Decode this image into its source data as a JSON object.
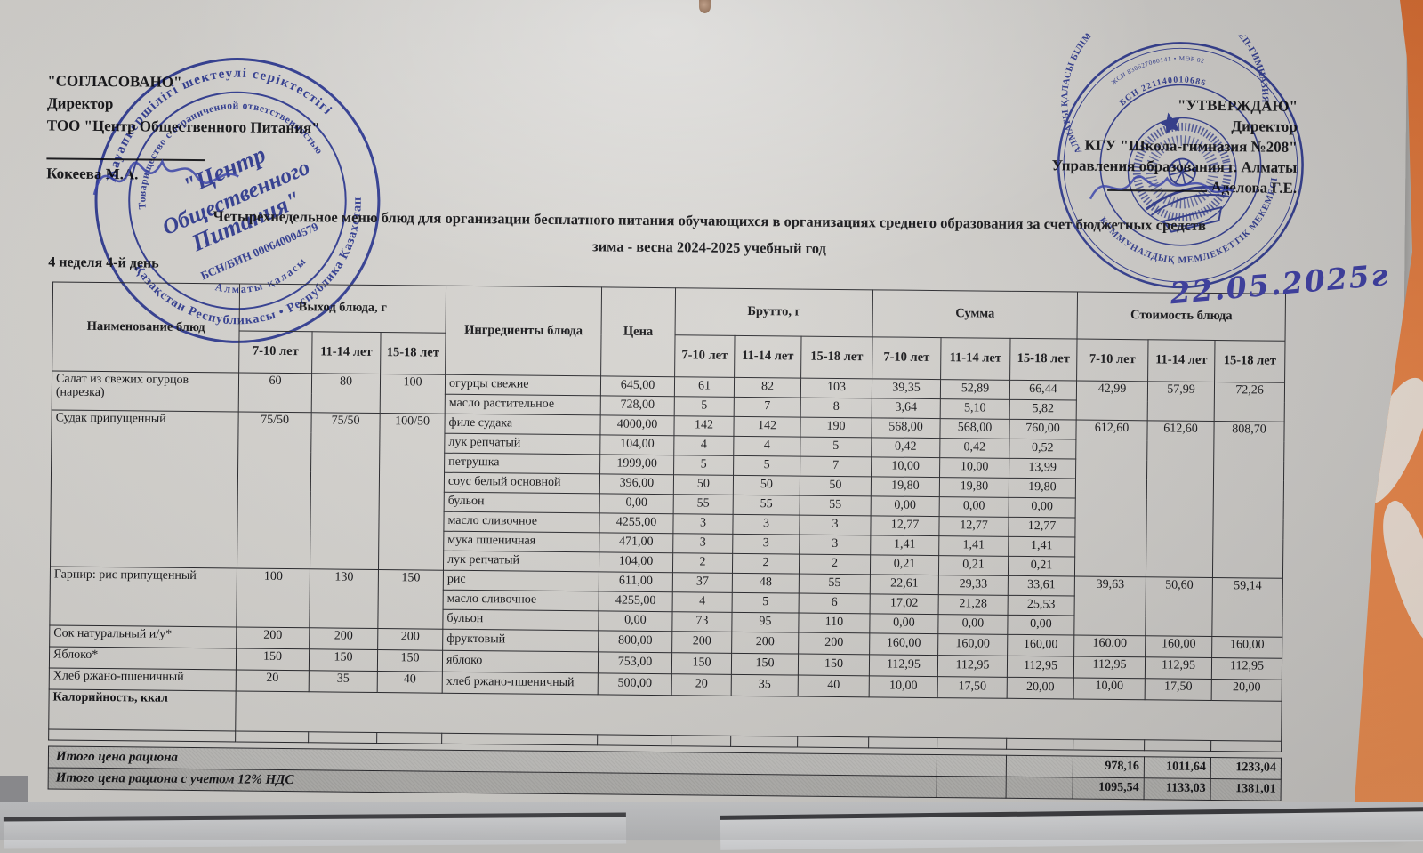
{
  "approvals": {
    "left": {
      "lines": [
        "\"СОГЛАСОВАНО\"",
        "Директор",
        "ТОО \"Центр Общественного Питания\""
      ],
      "name": "Кокеева М.А."
    },
    "right": {
      "lines": [
        "\"УТВЕРЖДАЮ\"",
        "Директор",
        "КГУ \"Школа-гимназия №208\"",
        "Управления образования г. Алматы"
      ],
      "name": "Аделова Г.Е."
    }
  },
  "title": {
    "line1": "Четырехнедельное меню блюд для организации бесплатного питания обучающихся в организациях среднего образования за счет бюджетных средств",
    "line2": "зима - весна 2024-2025 учебный год"
  },
  "week_label": "4 неделя 4-й день",
  "handwritten_date": "22.05.2025г",
  "stamps": {
    "left": {
      "ring_top": "Жауапкершілігі шектеулі серіктестігі",
      "ring_bottom": "Қазақстан Республикасы • Республика Казахстан",
      "ring_inner_top": "Товарищество с ограниченной ответственностью",
      "ring_inner_bottom": "Алматы қаласы",
      "center1": "\"Центр",
      "center2": "Общественного",
      "center3": "Питания\"",
      "bin": "БСН/БИН 000640004579"
    },
    "right": {
      "tiny_top": "ЖСН 830627000141 • МӨР 02",
      "ring_top": "АЛМАТЫ ҚАЛАСЫ БІЛІМ БАСҚАРМАСЫНЫҢ \"№ 208 МЕКТЕП-ГИМНАЗИЯ\"",
      "ring_bottom": "КОММУНАЛДЫҚ МЕМЛЕКЕТТІК МЕКЕМЕСІ",
      "bin": "БСН 221140010686"
    }
  },
  "table": {
    "col_headers": {
      "name": "Наименование блюд",
      "vykhod": "Выход блюда, г",
      "ingredients": "Ингредиенты блюда",
      "price": "Цена",
      "brutto": "Брутто, г",
      "summa": "Сумма",
      "cost": "Стоимость блюда"
    },
    "age_groups": [
      "7-10 лет",
      "11-14 лет",
      "15-18 лет"
    ],
    "groups": [
      {
        "name": "Салат из свежих огурцов (нарезка)",
        "out": [
          "60",
          "80",
          "100"
        ],
        "cost": [
          "42,99",
          "57,99",
          "72,26"
        ],
        "rows": [
          {
            "ing": "огурцы свежие",
            "price": "645,00",
            "brutto": [
              "61",
              "82",
              "103"
            ],
            "summa": [
              "39,35",
              "52,89",
              "66,44"
            ]
          },
          {
            "ing": "масло растительное",
            "price": "728,00",
            "brutto": [
              "5",
              "7",
              "8"
            ],
            "summa": [
              "3,64",
              "5,10",
              "5,82"
            ]
          }
        ]
      },
      {
        "name": "Судак припущенный",
        "out": [
          "75/50",
          "75/50",
          "100/50"
        ],
        "cost": [
          "612,60",
          "612,60",
          "808,70"
        ],
        "rows": [
          {
            "ing": "филе судака",
            "price": "4000,00",
            "brutto": [
              "142",
              "142",
              "190"
            ],
            "summa": [
              "568,00",
              "568,00",
              "760,00"
            ]
          },
          {
            "ing": "лук репчатый",
            "price": "104,00",
            "brutto": [
              "4",
              "4",
              "5"
            ],
            "summa": [
              "0,42",
              "0,42",
              "0,52"
            ]
          },
          {
            "ing": "петрушка",
            "price": "1999,00",
            "brutto": [
              "5",
              "5",
              "7"
            ],
            "summa": [
              "10,00",
              "10,00",
              "13,99"
            ]
          },
          {
            "ing": "соус белый основной",
            "price": "396,00",
            "brutto": [
              "50",
              "50",
              "50"
            ],
            "summa": [
              "19,80",
              "19,80",
              "19,80"
            ]
          },
          {
            "ing": "бульон",
            "price": "0,00",
            "brutto": [
              "55",
              "55",
              "55"
            ],
            "summa": [
              "0,00",
              "0,00",
              "0,00"
            ]
          },
          {
            "ing": "масло сливочное",
            "price": "4255,00",
            "brutto": [
              "3",
              "3",
              "3"
            ],
            "summa": [
              "12,77",
              "12,77",
              "12,77"
            ]
          },
          {
            "ing": "мука пшеничная",
            "price": "471,00",
            "brutto": [
              "3",
              "3",
              "3"
            ],
            "summa": [
              "1,41",
              "1,41",
              "1,41"
            ]
          },
          {
            "ing": "лук репчатый",
            "price": "104,00",
            "brutto": [
              "2",
              "2",
              "2"
            ],
            "summa": [
              "0,21",
              "0,21",
              "0,21"
            ]
          }
        ]
      },
      {
        "name": "Гарнир: рис припущенный",
        "out": [
          "100",
          "130",
          "150"
        ],
        "cost": [
          "39,63",
          "50,60",
          "59,14"
        ],
        "rows": [
          {
            "ing": "рис",
            "price": "611,00",
            "brutto": [
              "37",
              "48",
              "55"
            ],
            "summa": [
              "22,61",
              "29,33",
              "33,61"
            ]
          },
          {
            "ing": "масло сливочное",
            "price": "4255,00",
            "brutto": [
              "4",
              "5",
              "6"
            ],
            "summa": [
              "17,02",
              "21,28",
              "25,53"
            ]
          },
          {
            "ing": "бульон",
            "price": "0,00",
            "brutto": [
              "73",
              "95",
              "110"
            ],
            "summa": [
              "0,00",
              "0,00",
              "0,00"
            ]
          }
        ]
      },
      {
        "name": "Сок натуральный и/у*",
        "out": [
          "200",
          "200",
          "200"
        ],
        "cost": [
          "160,00",
          "160,00",
          "160,00"
        ],
        "rows": [
          {
            "ing": "фруктовый",
            "price": "800,00",
            "brutto": [
              "200",
              "200",
              "200"
            ],
            "summa": [
              "160,00",
              "160,00",
              "160,00"
            ]
          }
        ]
      },
      {
        "name": "Яблоко*",
        "out": [
          "150",
          "150",
          "150"
        ],
        "cost": [
          "112,95",
          "112,95",
          "112,95"
        ],
        "rows": [
          {
            "ing": "яблоко",
            "price": "753,00",
            "brutto": [
              "150",
              "150",
              "150"
            ],
            "summa": [
              "112,95",
              "112,95",
              "112,95"
            ]
          }
        ]
      },
      {
        "name": "Хлеб ржано-пшеничный",
        "out": [
          "20",
          "35",
          "40"
        ],
        "cost": [
          "10,00",
          "17,50",
          "20,00"
        ],
        "rows": [
          {
            "ing": "хлеб ржано-пшеничный",
            "price": "500,00",
            "brutto": [
              "20",
              "35",
              "40"
            ],
            "summa": [
              "10,00",
              "17,50",
              "20,00"
            ]
          }
        ]
      }
    ],
    "kcal_label": "Калорийность, ккал",
    "totals": [
      {
        "label": "Итого цена рациона",
        "values": [
          "978,16",
          "1011,64",
          "1233,04"
        ]
      },
      {
        "label": "Итого цена рациона с учетом 12% НДС",
        "values": [
          "1095,54",
          "1133,03",
          "1381,01"
        ]
      }
    ]
  },
  "colors": {
    "paper": "#d7d5d1",
    "accent_orange": "#e8864a",
    "stamp_blue": "#2f3eae",
    "ink_blue": "#3c3da0",
    "table_line": "#2a2a2e",
    "totals_shade_1": "#c6c5c2",
    "totals_shade_2": "#b7b6b3"
  }
}
